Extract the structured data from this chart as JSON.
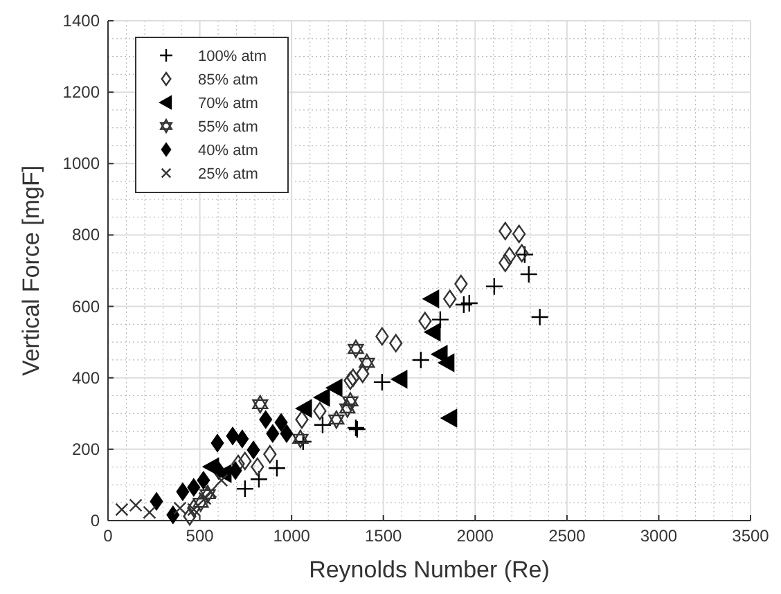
{
  "chart_data": {
    "type": "scatter",
    "xlabel": "Reynolds Number (Re)",
    "ylabel": "Vertical Force [mgF]",
    "xlim": [
      0,
      3500
    ],
    "ylim": [
      0,
      1400
    ],
    "xticks": [
      0,
      500,
      1000,
      1500,
      2000,
      2500,
      3000,
      3500
    ],
    "yticks": [
      0,
      200,
      400,
      600,
      800,
      1000,
      1200,
      1400
    ],
    "grid": true,
    "legend": "top left",
    "series": [
      {
        "name": "100% atm",
        "color": "#000000",
        "marker": "plus",
        "x": [
          746,
          822,
          920,
          1063,
          1169,
          1350,
          1357,
          1493,
          1704,
          1810,
          1938,
          1968,
          2104,
          2270,
          2292,
          2352
        ],
        "values": [
          89,
          116,
          147,
          221,
          268,
          260,
          256,
          388,
          450,
          563,
          605,
          609,
          656,
          745,
          690,
          570
        ]
      },
      {
        "name": "85% atm",
        "color": "#333333",
        "marker": "diamond-open",
        "x": [
          445,
          467,
          709,
          746,
          814,
          882,
          1056,
          1154,
          1320,
          1335,
          1387,
          1493,
          1568,
          1727,
          1862,
          1923,
          2164,
          2187,
          2239,
          2254,
          2164
        ],
        "values": [
          12,
          35,
          159,
          167,
          151,
          186,
          283,
          307,
          392,
          400,
          411,
          516,
          497,
          559,
          621,
          663,
          722,
          741,
          803,
          749,
          811
        ]
      },
      {
        "name": "70% atm",
        "color": "#000000",
        "marker": "triangle-left",
        "x": [
          565,
          633,
          1071,
          1169,
          1237,
          1591,
          1764,
          1772,
          1810,
          1847,
          1862
        ],
        "values": [
          151,
          132,
          314,
          345,
          372,
          396,
          621,
          528,
          466,
          442,
          287
        ]
      },
      {
        "name": "55% atm",
        "color": "#333333",
        "marker": "star",
        "x": [
          505,
          543,
          829,
          1048,
          1244,
          1304,
          1320,
          1350,
          1410
        ],
        "values": [
          50,
          74,
          326,
          229,
          283,
          314,
          334,
          481,
          442
        ]
      },
      {
        "name": "40% atm",
        "color": "#000000",
        "marker": "diamond",
        "x": [
          264,
          354,
          407,
          467,
          520,
          596,
          603,
          679,
          694,
          731,
          792,
          859,
          897,
          943,
          973
        ],
        "values": [
          54,
          16,
          81,
          93,
          113,
          217,
          140,
          237,
          140,
          229,
          198,
          283,
          244,
          275,
          244
        ]
      },
      {
        "name": "25% atm",
        "color": "#333333",
        "marker": "cross",
        "x": [
          75,
          151,
          226,
          392,
          467,
          528,
          558,
          618
        ],
        "values": [
          31,
          43,
          23,
          35,
          31,
          62,
          81,
          113
        ]
      }
    ]
  }
}
